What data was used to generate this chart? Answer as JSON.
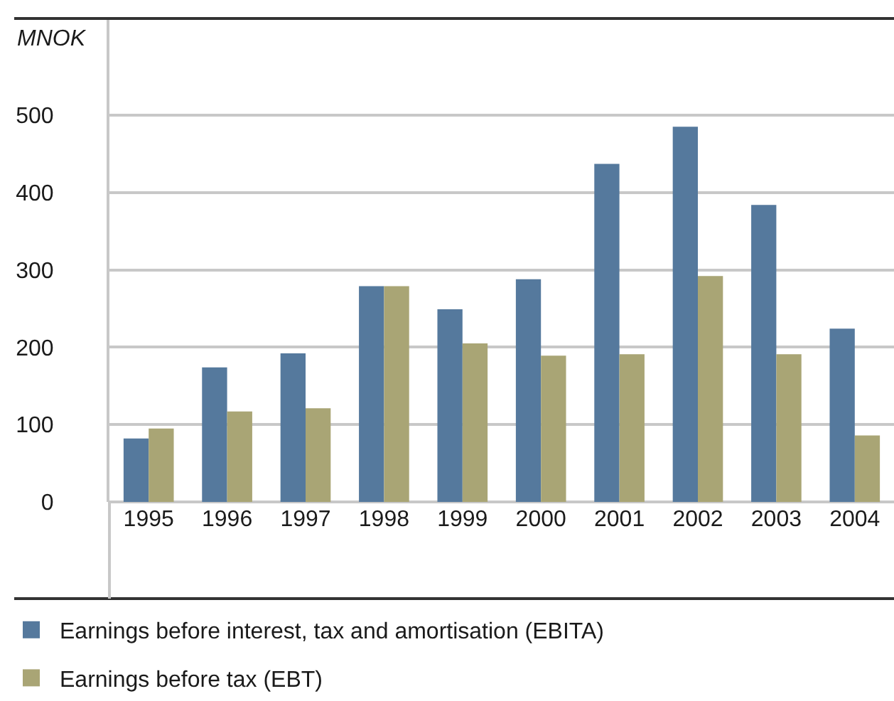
{
  "chart_data": {
    "type": "bar",
    "ylabel": "MNOK",
    "categories": [
      "1995",
      "1996",
      "1997",
      "1998",
      "1999",
      "2000",
      "2001",
      "2002",
      "2003",
      "2004"
    ],
    "series": [
      {
        "name": "Earnings before interest, tax and amortisation (EBITA)",
        "color": "#55799d",
        "values": [
          82,
          174,
          192,
          279,
          249,
          288,
          437,
          485,
          384,
          224
        ]
      },
      {
        "name": "Earnings before tax (EBT)",
        "color": "#a9a575",
        "values": [
          95,
          117,
          121,
          279,
          205,
          189,
          191,
          292,
          191,
          86
        ]
      }
    ],
    "ylim": [
      0,
      625
    ],
    "yticks": [
      0,
      100,
      200,
      300,
      400,
      500
    ],
    "grid": "y",
    "legend": "bottom left"
  }
}
